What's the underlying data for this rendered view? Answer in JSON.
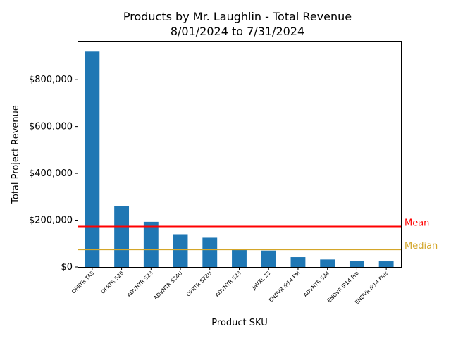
{
  "chart_data": {
    "type": "bar",
    "title": "Products by Mr. Laughlin - Total Revenue",
    "subtitle": "8/01/2024 to 7/31/2024",
    "xlabel": "Product SKU",
    "ylabel": "Total Project Revenue",
    "categories": [
      "OPRTR TA5",
      "OPRTR S20",
      "ADVNTR S23",
      "ADVNTR S24U",
      "OPRTR S22U",
      "ADVNTR S23",
      "JAVXL 23",
      "ENDVR iP14 PM",
      "ADVNTR S24",
      "ENDVR iP14 Pro",
      "ENDVR iP14 Plus"
    ],
    "values": [
      920000,
      260000,
      193000,
      140000,
      125000,
      75000,
      70000,
      42000,
      32000,
      27000,
      24000
    ],
    "ylim": [
      0,
      966000
    ],
    "yticks": [
      0,
      200000,
      400000,
      600000,
      800000
    ],
    "ytick_labels": [
      "$0",
      "$200,000",
      "$400,000",
      "$600,000",
      "$800,000"
    ],
    "bar_color": "#1f77b4",
    "grid": false,
    "reference_lines": [
      {
        "label": "Mean",
        "value": 173000,
        "color": "#ff0000"
      },
      {
        "label": "Median",
        "value": 75000,
        "color": "#d4a62a"
      }
    ]
  }
}
